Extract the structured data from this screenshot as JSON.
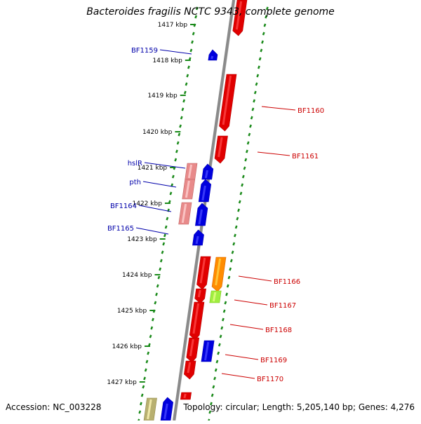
{
  "title": "Bacteroides fragilis NCTC 9343, complete genome",
  "footer": {
    "accession": "Accession: NC_003228",
    "topology": "Topology: circular; Length: 5,205,140 bp; Genes: 4,276"
  },
  "colors": {
    "backbone": "#8a8a8a",
    "ruler_ticks": "#1a8a1a",
    "strand_forward": "#e00000",
    "strand_reverse": "#0000dd",
    "label_forward": "#cc0000",
    "label_reverse": "#0000aa",
    "orange": "#ff8c00",
    "lightgreen": "#a0ee40",
    "pink": "#e88a8a",
    "olive": "#b8b070"
  },
  "ruler_kbp": [
    "1417 kbp",
    "1418 kbp",
    "1419 kbp",
    "1420 kbp",
    "1421 kbp",
    "1422 kbp",
    "1423 kbp",
    "1424 kbp",
    "1425 kbp",
    "1426 kbp",
    "1427 kbp"
  ],
  "gene_labels": {
    "left": [
      "BF1159",
      "hslR",
      "pth",
      "BF1164",
      "BF1165"
    ],
    "right": [
      "BF1160",
      "BF1161",
      "BF1166",
      "BF1167",
      "BF1168",
      "BF1169",
      "BF1170"
    ]
  }
}
